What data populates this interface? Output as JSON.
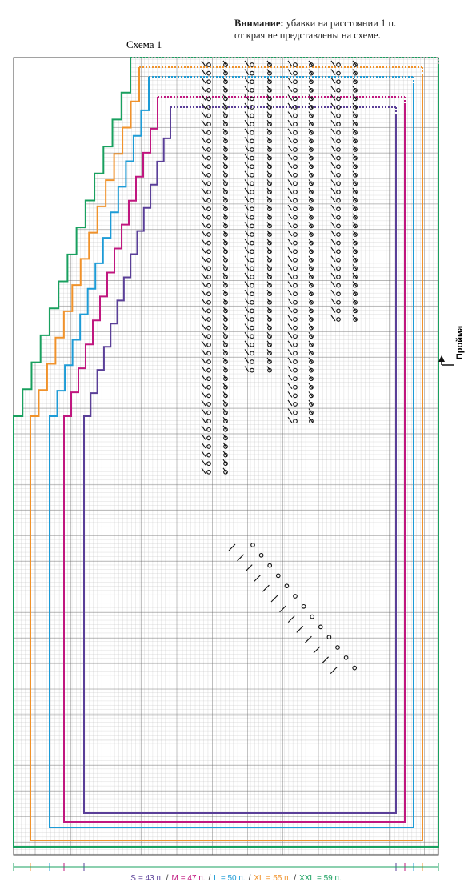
{
  "note": {
    "label": "Внимание:",
    "lines": [
      "убавки на расстоянии 1 п.",
      "от края не представлены на схеме."
    ]
  },
  "title": "Схема 1",
  "side_label": "Пройма",
  "separator": "/",
  "sizes": [
    {
      "name": "S",
      "text": "= 43 п.",
      "color": "#5a3f98"
    },
    {
      "name": "M",
      "text": "= 47 п.",
      "color": "#c0177f"
    },
    {
      "name": "L",
      "text": "= 50 п.",
      "color": "#1d9bd6"
    },
    {
      "name": "XL",
      "text": "= 55 п.",
      "color": "#f0922b"
    },
    {
      "name": "XXL",
      "text": "= 59 п.",
      "color": "#19a05f"
    }
  ]
}
